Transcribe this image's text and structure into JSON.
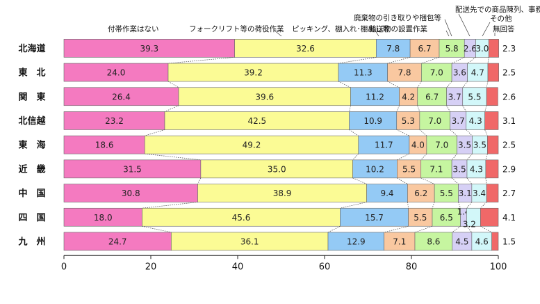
{
  "chart_data": {
    "type": "bar",
    "orientation": "horizontal",
    "stacked": true,
    "title": "",
    "xlabel": "",
    "ylabel": "",
    "xlim": [
      0,
      100
    ],
    "x_ticks": [
      "0",
      "20",
      "40",
      "60",
      "80",
      "100"
    ],
    "categories": [
      "北海道",
      "東　北",
      "関　東",
      "北信越",
      "東　海",
      "近　畿",
      "中　国",
      "四　国",
      "九　州"
    ],
    "series": [
      {
        "name": "付帯作業はない",
        "color": "#f47ac0",
        "values": [
          39.3,
          24.0,
          26.4,
          23.2,
          18.6,
          31.5,
          30.8,
          18.0,
          24.7
        ]
      },
      {
        "name": "フォークリフト等の荷役作業",
        "color": "#fbfb95",
        "values": [
          32.6,
          39.2,
          39.6,
          42.5,
          49.2,
          35.0,
          38.9,
          45.6,
          36.1
        ]
      },
      {
        "name": "ピッキング、棚入れ･棚出し等",
        "color": "#94caf5",
        "values": [
          7.8,
          11.3,
          11.2,
          10.9,
          11.7,
          10.2,
          9.4,
          15.7,
          12.9
        ]
      },
      {
        "name": "廃棄物の引き取りや梱包等",
        "color": "#f9c8a0",
        "values": [
          6.7,
          7.8,
          4.2,
          5.3,
          4.0,
          5.5,
          6.2,
          5.5,
          7.1
        ]
      },
      {
        "name": "輸送物の設置作業",
        "color": "#c6f5a0",
        "values": [
          5.8,
          7.0,
          6.7,
          7.0,
          7.0,
          7.1,
          5.5,
          6.5,
          8.6
        ]
      },
      {
        "name": "配送先での商品陳列、事務作業",
        "color": "#d6d0f5",
        "values": [
          2.6,
          3.6,
          3.7,
          3.7,
          3.5,
          3.5,
          3.1,
          1.4,
          4.5
        ]
      },
      {
        "name": "その他",
        "color": "#d2f7f9",
        "values": [
          3.0,
          4.7,
          5.5,
          4.3,
          3.5,
          4.3,
          3.4,
          3.2,
          4.6
        ]
      },
      {
        "name": "無回答",
        "color": "#f06868",
        "values": [
          2.3,
          2.5,
          2.6,
          3.1,
          2.5,
          2.9,
          2.7,
          4.1,
          1.5
        ]
      }
    ],
    "value_labels": [
      [
        "39.3",
        "32.6",
        "7.8",
        "6.7",
        "5.8",
        "2.6",
        "3.0",
        "2.3"
      ],
      [
        "24.0",
        "39.2",
        "11.3",
        "7.8",
        "7.0",
        "3.6",
        "4.7",
        "2.5"
      ],
      [
        "26.4",
        "39.6",
        "11.2",
        "4.2",
        "6.7",
        "3.7",
        "5.5",
        "2.6"
      ],
      [
        "23.2",
        "42.5",
        "10.9",
        "5.3",
        "7.0",
        "3.7",
        "4.3",
        "3.1"
      ],
      [
        "18.6",
        "49.2",
        "11.7",
        "4.0",
        "7.0",
        "3.5",
        "3.5",
        "2.5"
      ],
      [
        "31.5",
        "35.0",
        "10.2",
        "5.5",
        "7.1",
        "3.5",
        "4.3",
        "2.9"
      ],
      [
        "30.8",
        "38.9",
        "9.4",
        "6.2",
        "5.5",
        "3.1",
        "3.4",
        "2.7"
      ],
      [
        "18.0",
        "45.6",
        "15.7",
        "5.5",
        "6.5",
        "1.4",
        "3.2",
        "4.1"
      ],
      [
        "24.7",
        "36.1",
        "12.9",
        "7.1",
        "8.6",
        "4.5",
        "4.6",
        "1.5"
      ]
    ],
    "grid": false,
    "legend": "top, callout labels with leader lines"
  }
}
